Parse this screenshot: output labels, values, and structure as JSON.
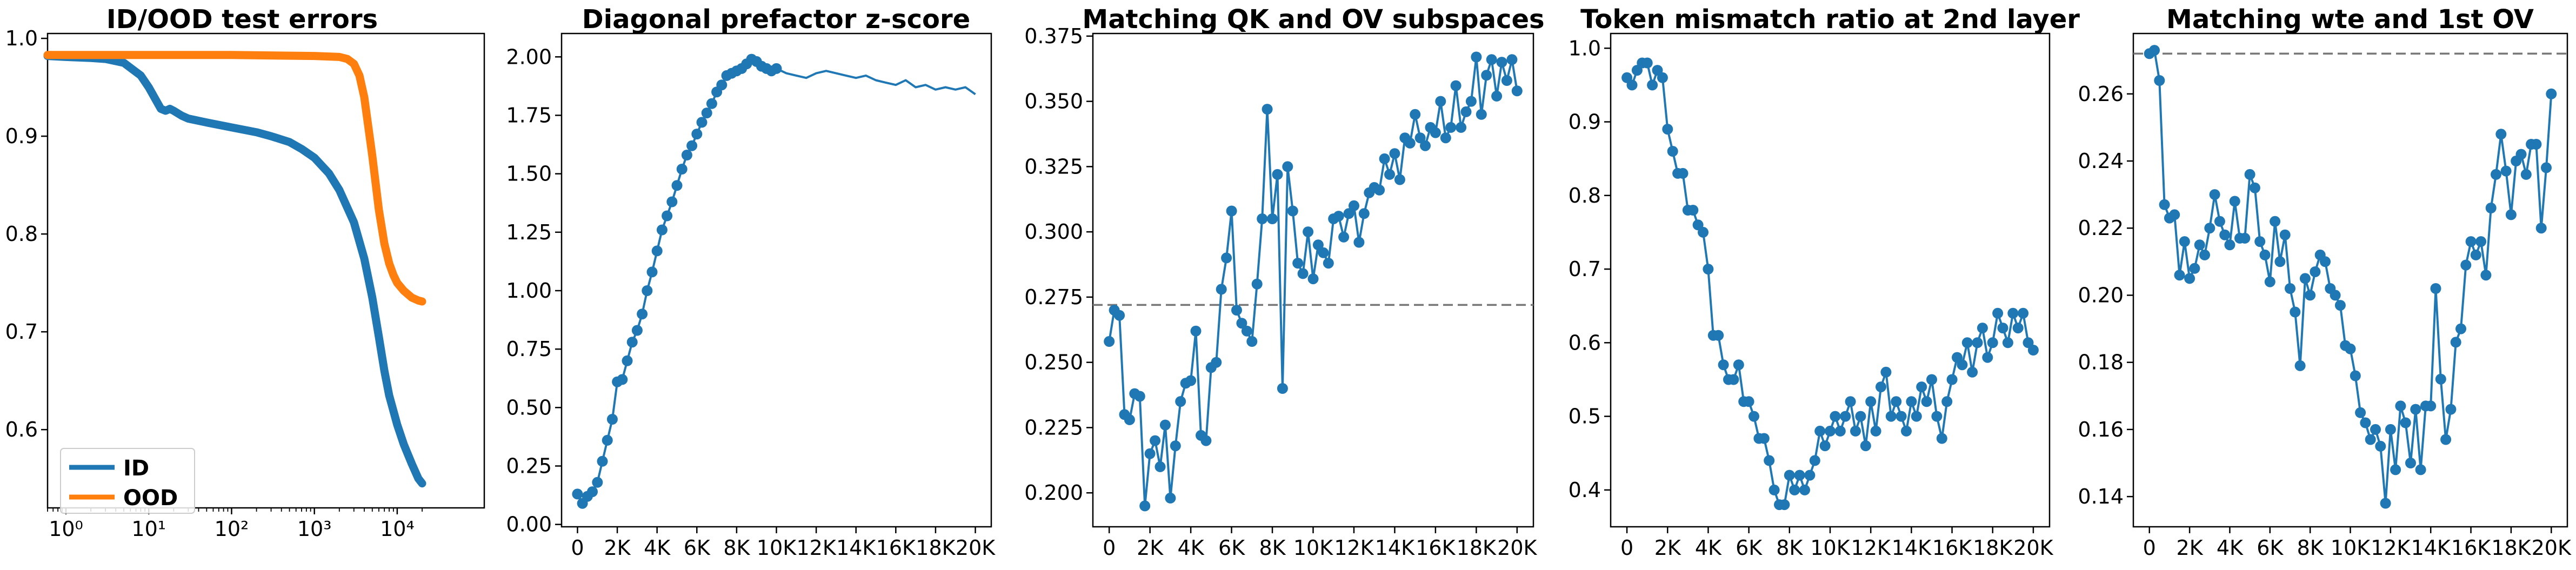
{
  "figure": {
    "panel_count": 5
  },
  "chart_data": [
    {
      "type": "line",
      "title": "ID/OOD test errors",
      "xlabel": "",
      "ylabel": "",
      "x_scale": "log",
      "xlim": [
        0.6,
        30000
      ],
      "ylim": [
        0.52,
        1.005
      ],
      "xticks": [
        1,
        10,
        100,
        1000,
        10000
      ],
      "xtick_labels": [
        "10⁰",
        "10¹",
        "10²",
        "10³",
        "10⁴"
      ],
      "yticks": [
        0.6,
        0.7,
        0.8,
        0.9,
        1.0
      ],
      "ytick_labels": [
        "0.6",
        "0.7",
        "0.8",
        "0.9",
        "1.0"
      ],
      "grid": false,
      "legend": {
        "placement": "lower-left",
        "entries": [
          "ID",
          "OOD"
        ]
      },
      "series": [
        {
          "name": "ID",
          "color": "#1f77b4",
          "x": [
            0.6,
            1,
            2,
            3,
            5,
            8,
            10,
            12,
            14,
            16,
            18,
            20,
            25,
            30,
            50,
            100,
            200,
            300,
            500,
            700,
            1000,
            1500,
            2000,
            3000,
            4000,
            5000,
            6000,
            7000,
            8000,
            10000,
            12000,
            15000,
            18000,
            20000
          ],
          "y": [
            0.982,
            0.981,
            0.98,
            0.979,
            0.975,
            0.962,
            0.95,
            0.938,
            0.928,
            0.926,
            0.928,
            0.926,
            0.921,
            0.918,
            0.914,
            0.909,
            0.904,
            0.9,
            0.894,
            0.887,
            0.878,
            0.862,
            0.845,
            0.812,
            0.775,
            0.735,
            0.695,
            0.66,
            0.635,
            0.605,
            0.585,
            0.565,
            0.55,
            0.545
          ]
        },
        {
          "name": "OOD",
          "color": "#ff7f0e",
          "x": [
            0.6,
            1,
            10,
            100,
            1000,
            2000,
            2500,
            3000,
            3500,
            4000,
            5000,
            6000,
            7000,
            8000,
            9000,
            10000,
            12000,
            15000,
            18000,
            20000
          ],
          "y": [
            0.983,
            0.983,
            0.983,
            0.983,
            0.982,
            0.981,
            0.979,
            0.974,
            0.962,
            0.94,
            0.88,
            0.825,
            0.79,
            0.77,
            0.758,
            0.75,
            0.742,
            0.735,
            0.732,
            0.731
          ]
        }
      ]
    },
    {
      "type": "line",
      "title": "Diagonal prefactor z-score",
      "xlabel": "",
      "ylabel": "",
      "xlim": [
        -800,
        20800
      ],
      "ylim": [
        -0.01,
        2.1
      ],
      "xticks": [
        0,
        2000,
        4000,
        6000,
        8000,
        10000,
        12000,
        14000,
        16000,
        18000,
        20000
      ],
      "xtick_labels": [
        "0",
        "2K",
        "4K",
        "6K",
        "8K",
        "10K",
        "12K",
        "14K",
        "16K",
        "18K",
        "20K"
      ],
      "yticks": [
        0,
        0.25,
        0.5,
        0.75,
        1.0,
        1.25,
        1.5,
        1.75,
        2.0
      ],
      "ytick_labels": [
        "0.00",
        "0.25",
        "0.50",
        "0.75",
        "1.00",
        "1.25",
        "1.50",
        "1.75",
        "2.00"
      ],
      "grid": false,
      "markers_until_x": 10000,
      "series": [
        {
          "name": "",
          "color": "#1f77b4",
          "x": [
            0,
            250,
            500,
            750,
            1000,
            1250,
            1500,
            1750,
            2000,
            2250,
            2500,
            2750,
            3000,
            3250,
            3500,
            3750,
            4000,
            4250,
            4500,
            4750,
            5000,
            5250,
            5500,
            5750,
            6000,
            6250,
            6500,
            6750,
            7000,
            7250,
            7500,
            7750,
            8000,
            8250,
            8500,
            8750,
            9000,
            9250,
            9500,
            9750,
            10000,
            10500,
            11000,
            11500,
            12000,
            12500,
            13000,
            13500,
            14000,
            14500,
            15000,
            15500,
            16000,
            16500,
            17000,
            17500,
            18000,
            18500,
            19000,
            19500,
            20000
          ],
          "y": [
            0.13,
            0.09,
            0.12,
            0.14,
            0.18,
            0.27,
            0.36,
            0.45,
            0.61,
            0.62,
            0.7,
            0.78,
            0.83,
            0.9,
            1.0,
            1.08,
            1.17,
            1.26,
            1.32,
            1.38,
            1.45,
            1.52,
            1.58,
            1.62,
            1.67,
            1.72,
            1.76,
            1.8,
            1.85,
            1.88,
            1.92,
            1.93,
            1.94,
            1.95,
            1.97,
            1.99,
            1.98,
            1.96,
            1.95,
            1.94,
            1.95,
            1.93,
            1.92,
            1.91,
            1.93,
            1.94,
            1.93,
            1.92,
            1.91,
            1.92,
            1.9,
            1.89,
            1.88,
            1.9,
            1.87,
            1.88,
            1.86,
            1.87,
            1.86,
            1.87,
            1.84
          ]
        }
      ]
    },
    {
      "type": "line",
      "title": "Matching QK and OV subspaces",
      "xlabel": "",
      "ylabel": "",
      "xlim": [
        -800,
        20800
      ],
      "ylim": [
        0.187,
        0.376
      ],
      "xticks": [
        0,
        2000,
        4000,
        6000,
        8000,
        10000,
        12000,
        14000,
        16000,
        18000,
        20000
      ],
      "xtick_labels": [
        "0",
        "2K",
        "4K",
        "6K",
        "8K",
        "10K",
        "12K",
        "14K",
        "16K",
        "18K",
        "20K"
      ],
      "yticks": [
        0.2,
        0.225,
        0.25,
        0.275,
        0.3,
        0.325,
        0.35,
        0.375
      ],
      "ytick_labels": [
        "0.200",
        "0.225",
        "0.250",
        "0.275",
        "0.300",
        "0.325",
        "0.350",
        "0.375"
      ],
      "grid": false,
      "reference_line": {
        "y": 0.272,
        "style": "dashed",
        "color": "#777777"
      },
      "series": [
        {
          "name": "",
          "color": "#1f77b4",
          "x": [
            0,
            250,
            500,
            750,
            1000,
            1250,
            1500,
            1750,
            2000,
            2250,
            2500,
            2750,
            3000,
            3250,
            3500,
            3750,
            4000,
            4250,
            4500,
            4750,
            5000,
            5250,
            5500,
            5750,
            6000,
            6250,
            6500,
            6750,
            7000,
            7250,
            7500,
            7750,
            8000,
            8250,
            8500,
            8750,
            9000,
            9250,
            9500,
            9750,
            10000,
            10250,
            10500,
            10750,
            11000,
            11250,
            11500,
            11750,
            12000,
            12250,
            12500,
            12750,
            13000,
            13250,
            13500,
            13750,
            14000,
            14250,
            14500,
            14750,
            15000,
            15250,
            15500,
            15750,
            16000,
            16250,
            16500,
            16750,
            17000,
            17250,
            17500,
            17750,
            18000,
            18250,
            18500,
            18750,
            19000,
            19250,
            19500,
            19750,
            20000
          ],
          "y": [
            0.258,
            0.27,
            0.268,
            0.23,
            0.228,
            0.238,
            0.237,
            0.195,
            0.215,
            0.22,
            0.21,
            0.226,
            0.198,
            0.218,
            0.235,
            0.242,
            0.243,
            0.262,
            0.222,
            0.22,
            0.248,
            0.25,
            0.278,
            0.29,
            0.308,
            0.27,
            0.265,
            0.262,
            0.258,
            0.28,
            0.305,
            0.347,
            0.305,
            0.322,
            0.24,
            0.325,
            0.308,
            0.288,
            0.284,
            0.3,
            0.282,
            0.295,
            0.292,
            0.288,
            0.305,
            0.306,
            0.298,
            0.307,
            0.31,
            0.296,
            0.307,
            0.315,
            0.317,
            0.316,
            0.328,
            0.322,
            0.33,
            0.32,
            0.336,
            0.334,
            0.345,
            0.336,
            0.333,
            0.34,
            0.338,
            0.35,
            0.336,
            0.34,
            0.356,
            0.34,
            0.346,
            0.35,
            0.367,
            0.345,
            0.36,
            0.366,
            0.352,
            0.365,
            0.358,
            0.366,
            0.354
          ]
        }
      ]
    },
    {
      "type": "line",
      "title": "Token mismatch ratio at 2nd layer",
      "xlabel": "",
      "ylabel": "",
      "xlim": [
        -800,
        20800
      ],
      "ylim": [
        0.35,
        1.02
      ],
      "xticks": [
        0,
        2000,
        4000,
        6000,
        8000,
        10000,
        12000,
        14000,
        16000,
        18000,
        20000
      ],
      "xtick_labels": [
        "0",
        "2K",
        "4K",
        "6K",
        "8K",
        "10K",
        "12K",
        "14K",
        "16K",
        "18K",
        "20K"
      ],
      "yticks": [
        0.4,
        0.5,
        0.6,
        0.7,
        0.8,
        0.9,
        1.0
      ],
      "ytick_labels": [
        "0.4",
        "0.5",
        "0.6",
        "0.7",
        "0.8",
        "0.9",
        "1.0"
      ],
      "grid": false,
      "series": [
        {
          "name": "",
          "color": "#1f77b4",
          "x": [
            0,
            250,
            500,
            750,
            1000,
            1250,
            1500,
            1750,
            2000,
            2250,
            2500,
            2750,
            3000,
            3250,
            3500,
            3750,
            4000,
            4250,
            4500,
            4750,
            5000,
            5250,
            5500,
            5750,
            6000,
            6250,
            6500,
            6750,
            7000,
            7250,
            7500,
            7750,
            8000,
            8250,
            8500,
            8750,
            9000,
            9250,
            9500,
            9750,
            10000,
            10250,
            10500,
            10750,
            11000,
            11250,
            11500,
            11750,
            12000,
            12250,
            12500,
            12750,
            13000,
            13250,
            13500,
            13750,
            14000,
            14250,
            14500,
            14750,
            15000,
            15250,
            15500,
            15750,
            16000,
            16250,
            16500,
            16750,
            17000,
            17250,
            17500,
            17750,
            18000,
            18250,
            18500,
            18750,
            19000,
            19250,
            19500,
            19750,
            20000
          ],
          "y": [
            0.96,
            0.95,
            0.97,
            0.98,
            0.98,
            0.95,
            0.97,
            0.96,
            0.89,
            0.86,
            0.83,
            0.83,
            0.78,
            0.78,
            0.76,
            0.75,
            0.7,
            0.61,
            0.61,
            0.57,
            0.55,
            0.55,
            0.57,
            0.52,
            0.52,
            0.5,
            0.47,
            0.47,
            0.44,
            0.4,
            0.38,
            0.38,
            0.42,
            0.4,
            0.42,
            0.4,
            0.42,
            0.44,
            0.48,
            0.46,
            0.48,
            0.5,
            0.48,
            0.5,
            0.52,
            0.48,
            0.5,
            0.46,
            0.52,
            0.48,
            0.54,
            0.56,
            0.5,
            0.52,
            0.5,
            0.48,
            0.52,
            0.5,
            0.54,
            0.52,
            0.55,
            0.5,
            0.47,
            0.52,
            0.55,
            0.58,
            0.57,
            0.6,
            0.56,
            0.6,
            0.62,
            0.58,
            0.6,
            0.64,
            0.62,
            0.6,
            0.64,
            0.62,
            0.64,
            0.6,
            0.59
          ]
        }
      ]
    },
    {
      "type": "line",
      "title": "Matching wte and 1st OV",
      "xlabel": "",
      "ylabel": "",
      "xlim": [
        -800,
        20800
      ],
      "ylim": [
        0.131,
        0.278
      ],
      "xticks": [
        0,
        2000,
        4000,
        6000,
        8000,
        10000,
        12000,
        14000,
        16000,
        18000,
        20000
      ],
      "xtick_labels": [
        "0",
        "2K",
        "4K",
        "6K",
        "8K",
        "10K",
        "12K",
        "14K",
        "16K",
        "18K",
        "20K"
      ],
      "yticks": [
        0.14,
        0.16,
        0.18,
        0.2,
        0.22,
        0.24,
        0.26
      ],
      "ytick_labels": [
        "0.14",
        "0.16",
        "0.18",
        "0.20",
        "0.22",
        "0.24",
        "0.26"
      ],
      "grid": false,
      "reference_line": {
        "y": 0.272,
        "style": "dashed",
        "color": "#777777"
      },
      "series": [
        {
          "name": "",
          "color": "#1f77b4",
          "x": [
            0,
            250,
            500,
            750,
            1000,
            1250,
            1500,
            1750,
            2000,
            2250,
            2500,
            2750,
            3000,
            3250,
            3500,
            3750,
            4000,
            4250,
            4500,
            4750,
            5000,
            5250,
            5500,
            5750,
            6000,
            6250,
            6500,
            6750,
            7000,
            7250,
            7500,
            7750,
            8000,
            8250,
            8500,
            8750,
            9000,
            9250,
            9500,
            9750,
            10000,
            10250,
            10500,
            10750,
            11000,
            11250,
            11500,
            11750,
            12000,
            12250,
            12500,
            12750,
            13000,
            13250,
            13500,
            13750,
            14000,
            14250,
            14500,
            14750,
            15000,
            15250,
            15500,
            15750,
            16000,
            16250,
            16500,
            16750,
            17000,
            17250,
            17500,
            17750,
            18000,
            18250,
            18500,
            18750,
            19000,
            19250,
            19500,
            19750,
            20000
          ],
          "y": [
            0.272,
            0.273,
            0.264,
            0.227,
            0.223,
            0.224,
            0.206,
            0.216,
            0.205,
            0.208,
            0.215,
            0.212,
            0.22,
            0.23,
            0.222,
            0.218,
            0.215,
            0.228,
            0.217,
            0.217,
            0.236,
            0.232,
            0.216,
            0.212,
            0.204,
            0.222,
            0.21,
            0.218,
            0.202,
            0.195,
            0.179,
            0.205,
            0.2,
            0.207,
            0.212,
            0.21,
            0.202,
            0.2,
            0.197,
            0.185,
            0.184,
            0.176,
            0.165,
            0.162,
            0.157,
            0.16,
            0.155,
            0.138,
            0.16,
            0.148,
            0.167,
            0.162,
            0.15,
            0.166,
            0.148,
            0.167,
            0.167,
            0.202,
            0.175,
            0.157,
            0.166,
            0.186,
            0.19,
            0.209,
            0.216,
            0.212,
            0.216,
            0.206,
            0.226,
            0.236,
            0.248,
            0.237,
            0.224,
            0.24,
            0.242,
            0.236,
            0.245,
            0.245,
            0.22,
            0.238,
            0.26
          ]
        }
      ]
    }
  ]
}
